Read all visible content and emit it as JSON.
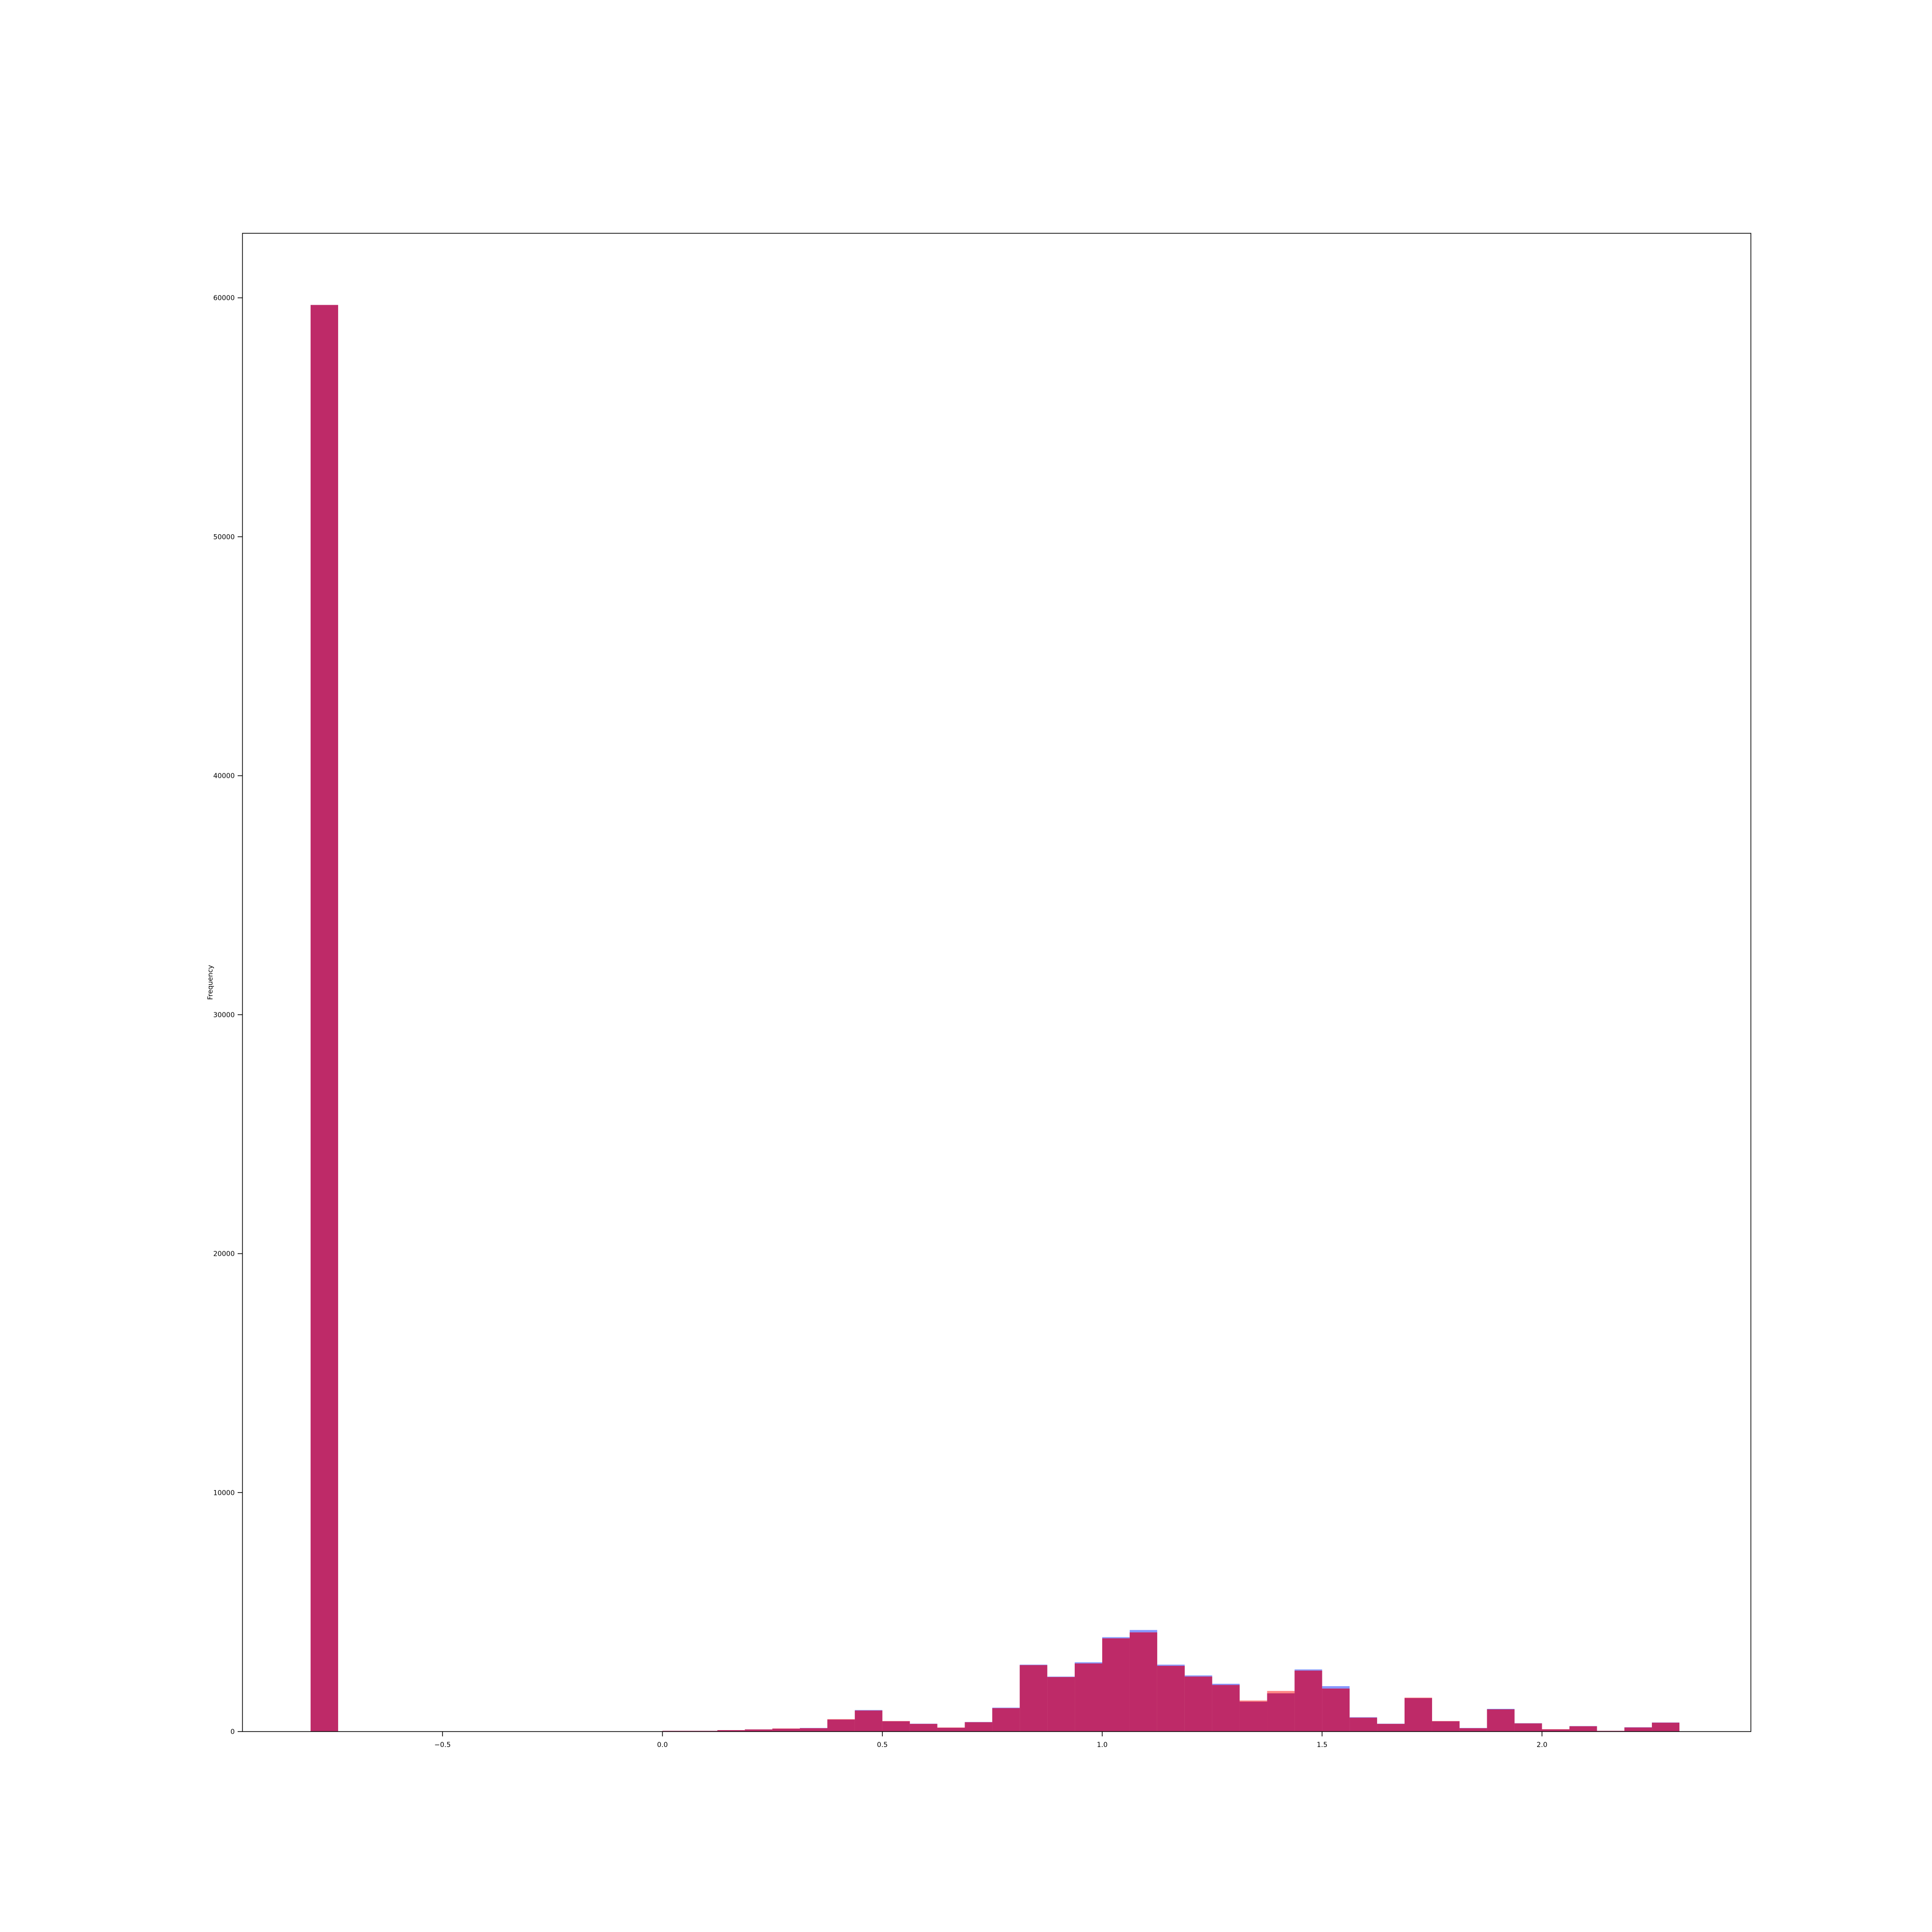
{
  "chart_data": {
    "type": "bar",
    "ylabel": "Frequency",
    "xlim": [
      -0.955,
      2.475
    ],
    "ylim": [
      0,
      62700
    ],
    "xticks": [
      -0.5,
      0.0,
      0.5,
      1.0,
      1.5,
      2.0
    ],
    "xtick_labels": [
      "−0.5",
      "0.0",
      "0.5",
      "1.0",
      "1.5",
      "2.0"
    ],
    "yticks": [
      0,
      10000,
      20000,
      30000,
      40000,
      50000,
      60000
    ],
    "ytick_labels": [
      "0",
      "10000",
      "20000",
      "30000",
      "40000",
      "50000",
      "60000"
    ],
    "grid": false,
    "bin_width": 0.0625,
    "series": [
      {
        "color": "#7a8cff",
        "bins": [
          {
            "x0": -0.8,
            "value": 59700
          },
          {
            "x0": 0.0,
            "value": 30
          },
          {
            "x0": 0.0625,
            "value": 30
          },
          {
            "x0": 0.125,
            "value": 60
          },
          {
            "x0": 0.1875,
            "value": 90
          },
          {
            "x0": 0.25,
            "value": 120
          },
          {
            "x0": 0.3125,
            "value": 150
          },
          {
            "x0": 0.375,
            "value": 500
          },
          {
            "x0": 0.4375,
            "value": 900
          },
          {
            "x0": 0.5,
            "value": 430
          },
          {
            "x0": 0.5625,
            "value": 330
          },
          {
            "x0": 0.625,
            "value": 160
          },
          {
            "x0": 0.6875,
            "value": 400
          },
          {
            "x0": 0.75,
            "value": 1000
          },
          {
            "x0": 0.8125,
            "value": 2800
          },
          {
            "x0": 0.875,
            "value": 2300
          },
          {
            "x0": 0.9375,
            "value": 2900
          },
          {
            "x0": 1.0,
            "value": 3950
          },
          {
            "x0": 1.0625,
            "value": 4250
          },
          {
            "x0": 1.125,
            "value": 2800
          },
          {
            "x0": 1.1875,
            "value": 2350
          },
          {
            "x0": 1.25,
            "value": 2000
          },
          {
            "x0": 1.3125,
            "value": 1250
          },
          {
            "x0": 1.375,
            "value": 1600
          },
          {
            "x0": 1.4375,
            "value": 2600
          },
          {
            "x0": 1.5,
            "value": 1900
          },
          {
            "x0": 1.5625,
            "value": 600
          },
          {
            "x0": 1.625,
            "value": 330
          },
          {
            "x0": 1.6875,
            "value": 1400
          },
          {
            "x0": 1.75,
            "value": 430
          },
          {
            "x0": 1.8125,
            "value": 150
          },
          {
            "x0": 1.875,
            "value": 950
          },
          {
            "x0": 1.9375,
            "value": 350
          },
          {
            "x0": 2.0,
            "value": 90
          },
          {
            "x0": 2.0625,
            "value": 230
          },
          {
            "x0": 2.125,
            "value": 30
          },
          {
            "x0": 2.1875,
            "value": 180
          },
          {
            "x0": 2.25,
            "value": 380
          }
        ]
      },
      {
        "color": "#ff7a7a",
        "bins": [
          {
            "x0": -0.8,
            "value": 59700
          },
          {
            "x0": 0.0,
            "value": 30
          },
          {
            "x0": 0.0625,
            "value": 30
          },
          {
            "x0": 0.125,
            "value": 60
          },
          {
            "x0": 0.1875,
            "value": 90
          },
          {
            "x0": 0.25,
            "value": 130
          },
          {
            "x0": 0.3125,
            "value": 140
          },
          {
            "x0": 0.375,
            "value": 520
          },
          {
            "x0": 0.4375,
            "value": 880
          },
          {
            "x0": 0.5,
            "value": 440
          },
          {
            "x0": 0.5625,
            "value": 320
          },
          {
            "x0": 0.625,
            "value": 170
          },
          {
            "x0": 0.6875,
            "value": 390
          },
          {
            "x0": 0.75,
            "value": 980
          },
          {
            "x0": 0.8125,
            "value": 2780
          },
          {
            "x0": 0.875,
            "value": 2280
          },
          {
            "x0": 0.9375,
            "value": 2850
          },
          {
            "x0": 1.0,
            "value": 3900
          },
          {
            "x0": 1.0625,
            "value": 4150
          },
          {
            "x0": 1.125,
            "value": 2750
          },
          {
            "x0": 1.1875,
            "value": 2300
          },
          {
            "x0": 1.25,
            "value": 1950
          },
          {
            "x0": 1.3125,
            "value": 1300
          },
          {
            "x0": 1.375,
            "value": 1700
          },
          {
            "x0": 1.4375,
            "value": 2550
          },
          {
            "x0": 1.5,
            "value": 1800
          },
          {
            "x0": 1.5625,
            "value": 580
          },
          {
            "x0": 1.625,
            "value": 320
          },
          {
            "x0": 1.6875,
            "value": 1420
          },
          {
            "x0": 1.75,
            "value": 440
          },
          {
            "x0": 1.8125,
            "value": 140
          },
          {
            "x0": 1.875,
            "value": 930
          },
          {
            "x0": 1.9375,
            "value": 340
          },
          {
            "x0": 2.0,
            "value": 100
          },
          {
            "x0": 2.0625,
            "value": 220
          },
          {
            "x0": 2.125,
            "value": 30
          },
          {
            "x0": 2.1875,
            "value": 170
          },
          {
            "x0": 2.25,
            "value": 370
          }
        ]
      }
    ],
    "overlap_color": "#be2a68"
  }
}
